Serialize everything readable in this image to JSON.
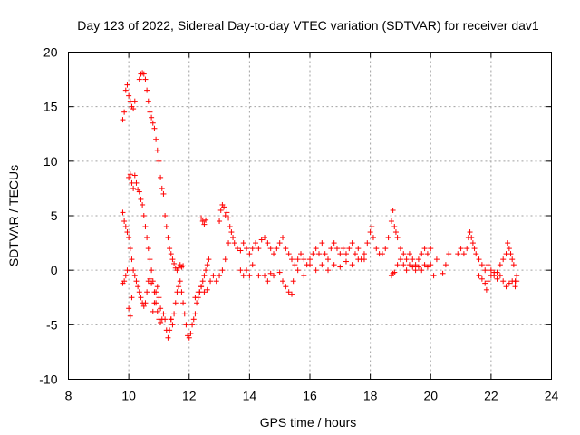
{
  "chart_data": {
    "type": "scatter",
    "title": "Day 123 of 2022, Sidereal Day-to-day VTEC variation (SDTVAR) for receiver dav1",
    "xlabel": "GPS time / hours",
    "ylabel": "SDTVAR / TECUs",
    "xlim": [
      8,
      24
    ],
    "ylim": [
      -10,
      20
    ],
    "x_ticks": [
      "8",
      "10",
      "12",
      "14",
      "16",
      "18",
      "20",
      "22",
      "24"
    ],
    "y_ticks": [
      "-10",
      "-5",
      "0",
      "5",
      "10",
      "15",
      "20"
    ],
    "grid": true,
    "marker": "+",
    "color": "#ff0000",
    "series": [
      {
        "name": "SDTVAR",
        "points": [
          [
            9.8,
            13.8
          ],
          [
            9.85,
            14.5
          ],
          [
            9.9,
            16.5
          ],
          [
            9.95,
            17.0
          ],
          [
            10.0,
            16.0
          ],
          [
            10.05,
            15.5
          ],
          [
            10.1,
            15.0
          ],
          [
            10.15,
            14.8
          ],
          [
            10.2,
            15.5
          ],
          [
            10.0,
            8.5
          ],
          [
            10.05,
            8.8
          ],
          [
            10.1,
            8.0
          ],
          [
            10.15,
            7.5
          ],
          [
            10.2,
            8.7
          ],
          [
            10.25,
            8.0
          ],
          [
            10.3,
            7.4
          ],
          [
            10.35,
            7.2
          ],
          [
            10.4,
            6.5
          ],
          [
            10.45,
            6.0
          ],
          [
            10.5,
            5.0
          ],
          [
            10.55,
            4.0
          ],
          [
            10.6,
            3.0
          ],
          [
            10.65,
            2.0
          ],
          [
            10.7,
            1.0
          ],
          [
            10.75,
            0.0
          ],
          [
            10.8,
            -1.0
          ],
          [
            10.85,
            -2.0
          ],
          [
            10.9,
            -3.0
          ],
          [
            10.95,
            -3.8
          ],
          [
            11.0,
            -4.5
          ],
          [
            11.05,
            -4.8
          ],
          [
            11.1,
            -4.5
          ],
          [
            11.15,
            -4.0
          ],
          [
            11.2,
            -4.5
          ],
          [
            11.25,
            -5.5
          ],
          [
            11.3,
            -6.2
          ],
          [
            11.35,
            -5.5
          ],
          [
            11.4,
            -4.5
          ],
          [
            10.35,
            17.5
          ],
          [
            10.4,
            18.0
          ],
          [
            10.45,
            18.1
          ],
          [
            10.5,
            18.0
          ],
          [
            10.55,
            17.5
          ],
          [
            10.6,
            16.5
          ],
          [
            10.65,
            15.5
          ],
          [
            10.7,
            14.5
          ],
          [
            10.75,
            14.0
          ],
          [
            10.8,
            13.5
          ],
          [
            10.85,
            13.0
          ],
          [
            10.9,
            12.0
          ],
          [
            10.95,
            11.0
          ],
          [
            11.0,
            10.0
          ],
          [
            11.05,
            8.5
          ],
          [
            11.1,
            7.5
          ],
          [
            11.15,
            7.0
          ],
          [
            11.2,
            5.0
          ],
          [
            11.25,
            4.0
          ],
          [
            11.3,
            3.0
          ],
          [
            11.35,
            2.0
          ],
          [
            11.4,
            1.5
          ],
          [
            11.45,
            1.0
          ],
          [
            11.5,
            0.6
          ],
          [
            11.55,
            0.2
          ],
          [
            11.6,
            0.0
          ],
          [
            11.65,
            0.2
          ],
          [
            11.7,
            0.5
          ],
          [
            11.75,
            0.3
          ],
          [
            11.8,
            0.4
          ],
          [
            9.8,
            5.3
          ],
          [
            9.85,
            4.5
          ],
          [
            9.9,
            4.0
          ],
          [
            9.95,
            3.5
          ],
          [
            10.0,
            3.0
          ],
          [
            10.05,
            2.0
          ],
          [
            10.1,
            1.0
          ],
          [
            10.15,
            0.0
          ],
          [
            10.2,
            -0.5
          ],
          [
            10.25,
            -1.0
          ],
          [
            10.3,
            -1.5
          ],
          [
            10.35,
            -2.0
          ],
          [
            10.4,
            -2.5
          ],
          [
            10.45,
            -3.0
          ],
          [
            10.5,
            -3.3
          ],
          [
            10.55,
            -3.0
          ],
          [
            10.6,
            -2.0
          ],
          [
            10.65,
            -1.0
          ],
          [
            10.7,
            -0.8
          ],
          [
            10.75,
            -1.2
          ],
          [
            9.8,
            -1.2
          ],
          [
            9.85,
            -1.0
          ],
          [
            9.9,
            -0.5
          ],
          [
            9.95,
            0.0
          ],
          [
            10.0,
            -3.5
          ],
          [
            10.05,
            -4.2
          ],
          [
            10.1,
            -2.5
          ],
          [
            10.8,
            -3.8
          ],
          [
            10.85,
            -3.0
          ],
          [
            10.9,
            -2.0
          ],
          [
            10.95,
            -1.5
          ],
          [
            11.0,
            -2.5
          ],
          [
            11.05,
            -3.5
          ],
          [
            11.4,
            -4.5
          ],
          [
            11.45,
            -5.0
          ],
          [
            11.5,
            -4.0
          ],
          [
            11.55,
            -3.0
          ],
          [
            11.6,
            -2.0
          ],
          [
            11.65,
            -1.5
          ],
          [
            11.7,
            -1.0
          ],
          [
            11.75,
            -2.0
          ],
          [
            11.8,
            -3.0
          ],
          [
            11.85,
            -4.0
          ],
          [
            11.9,
            -5.0
          ],
          [
            11.95,
            -6.0
          ],
          [
            12.0,
            -6.2
          ],
          [
            12.05,
            -5.8
          ],
          [
            12.1,
            -5.0
          ],
          [
            12.15,
            -4.5
          ],
          [
            12.2,
            -4.0
          ],
          [
            12.25,
            -3.0
          ],
          [
            12.3,
            -2.5
          ],
          [
            12.35,
            -2.0
          ],
          [
            12.4,
            -1.5
          ],
          [
            12.45,
            -1.0
          ],
          [
            12.5,
            -0.5
          ],
          [
            12.55,
            0.0
          ],
          [
            12.6,
            0.5
          ],
          [
            12.65,
            1.0
          ],
          [
            12.2,
            -2.5
          ],
          [
            12.3,
            -2.0
          ],
          [
            12.4,
            -1.5
          ],
          [
            12.5,
            -2.0
          ],
          [
            12.6,
            -1.8
          ],
          [
            12.7,
            -1.0
          ],
          [
            12.8,
            -0.5
          ],
          [
            12.9,
            -1.0
          ],
          [
            13.0,
            -0.5
          ],
          [
            13.1,
            0.0
          ],
          [
            13.2,
            1.0
          ],
          [
            13.3,
            2.5
          ],
          [
            12.4,
            4.8
          ],
          [
            12.45,
            4.5
          ],
          [
            12.5,
            4.2
          ],
          [
            12.55,
            4.6
          ],
          [
            13.0,
            4.5
          ],
          [
            13.05,
            5.5
          ],
          [
            13.1,
            6.0
          ],
          [
            13.15,
            5.8
          ],
          [
            13.2,
            5.0
          ],
          [
            13.25,
            5.3
          ],
          [
            13.3,
            4.8
          ],
          [
            13.35,
            4.0
          ],
          [
            13.4,
            3.5
          ],
          [
            13.45,
            3.0
          ],
          [
            13.5,
            2.5
          ],
          [
            13.6,
            2.0
          ],
          [
            13.7,
            1.8
          ],
          [
            13.8,
            2.5
          ],
          [
            13.9,
            2.0
          ],
          [
            14.0,
            1.5
          ],
          [
            14.1,
            2.0
          ],
          [
            14.2,
            2.5
          ],
          [
            14.3,
            2.0
          ],
          [
            14.4,
            2.8
          ],
          [
            14.5,
            3.0
          ],
          [
            14.6,
            2.5
          ],
          [
            14.7,
            2.0
          ],
          [
            14.8,
            1.5
          ],
          [
            14.9,
            2.0
          ],
          [
            15.0,
            2.5
          ],
          [
            15.1,
            3.0
          ],
          [
            15.2,
            2.0
          ],
          [
            15.3,
            1.5
          ],
          [
            15.4,
            1.0
          ],
          [
            15.5,
            0.5
          ],
          [
            15.6,
            1.0
          ],
          [
            15.7,
            1.5
          ],
          [
            15.8,
            1.0
          ],
          [
            15.9,
            0.5
          ],
          [
            16.0,
            1.0
          ],
          [
            16.1,
            1.5
          ],
          [
            16.2,
            2.0
          ],
          [
            16.3,
            1.5
          ],
          [
            16.4,
            2.5
          ],
          [
            16.5,
            1.5
          ],
          [
            16.6,
            1.0
          ],
          [
            16.7,
            2.0
          ],
          [
            16.8,
            2.5
          ],
          [
            16.9,
            2.0
          ],
          [
            17.0,
            1.5
          ],
          [
            17.1,
            2.0
          ],
          [
            17.2,
            1.5
          ],
          [
            17.3,
            2.0
          ],
          [
            17.4,
            2.5
          ],
          [
            17.5,
            1.5
          ],
          [
            17.6,
            2.0
          ],
          [
            17.7,
            1.0
          ],
          [
            17.8,
            1.5
          ],
          [
            17.9,
            2.5
          ],
          [
            18.0,
            3.5
          ],
          [
            18.05,
            4.0
          ],
          [
            18.1,
            3.0
          ],
          [
            18.2,
            2.0
          ],
          [
            18.3,
            1.5
          ],
          [
            18.4,
            1.5
          ],
          [
            18.5,
            2.0
          ],
          [
            18.6,
            3.0
          ],
          [
            18.7,
            4.5
          ],
          [
            18.75,
            5.5
          ],
          [
            18.8,
            4.0
          ],
          [
            18.85,
            3.5
          ],
          [
            18.9,
            3.0
          ],
          [
            19.0,
            2.0
          ],
          [
            19.1,
            1.5
          ],
          [
            19.2,
            1.0
          ],
          [
            19.3,
            1.5
          ],
          [
            19.4,
            1.0
          ],
          [
            19.5,
            0.5
          ],
          [
            19.6,
            1.0
          ],
          [
            19.7,
            1.5
          ],
          [
            19.8,
            2.0
          ],
          [
            19.9,
            1.5
          ],
          [
            20.0,
            2.0
          ],
          [
            13.7,
            0.0
          ],
          [
            13.8,
            -0.5
          ],
          [
            13.9,
            0.0
          ],
          [
            14.0,
            -0.5
          ],
          [
            14.1,
            0.5
          ],
          [
            14.3,
            -0.5
          ],
          [
            14.5,
            -0.5
          ],
          [
            14.6,
            -1.0
          ],
          [
            14.7,
            -0.3
          ],
          [
            14.8,
            -0.5
          ],
          [
            15.0,
            -0.2
          ],
          [
            15.1,
            -1.0
          ],
          [
            15.2,
            -1.5
          ],
          [
            15.3,
            -2.0
          ],
          [
            15.4,
            -2.2
          ],
          [
            15.45,
            -1.0
          ],
          [
            15.6,
            0.0
          ],
          [
            15.8,
            -0.5
          ],
          [
            16.0,
            0.5
          ],
          [
            16.2,
            0.0
          ],
          [
            16.4,
            0.5
          ],
          [
            16.6,
            0.0
          ],
          [
            16.8,
            0.5
          ],
          [
            17.0,
            0.3
          ],
          [
            17.2,
            0.8
          ],
          [
            17.4,
            0.5
          ],
          [
            17.6,
            1.0
          ],
          [
            17.8,
            1.0
          ],
          [
            18.7,
            -0.5
          ],
          [
            18.75,
            -0.3
          ],
          [
            18.8,
            -0.2
          ],
          [
            18.9,
            0.5
          ],
          [
            19.0,
            1.0
          ],
          [
            19.1,
            0.5
          ],
          [
            19.2,
            0.0
          ],
          [
            19.3,
            0.5
          ],
          [
            19.4,
            0.3
          ],
          [
            19.5,
            0.0
          ],
          [
            19.6,
            0.3
          ],
          [
            19.7,
            0.0
          ],
          [
            19.8,
            0.5
          ],
          [
            19.9,
            0.3
          ],
          [
            20.0,
            0.5
          ],
          [
            20.1,
            -0.5
          ],
          [
            20.2,
            1.0
          ],
          [
            20.4,
            -0.3
          ],
          [
            20.5,
            0.5
          ],
          [
            20.6,
            1.5
          ],
          [
            20.9,
            1.5
          ],
          [
            21.0,
            2.0
          ],
          [
            21.1,
            1.5
          ],
          [
            21.2,
            2.0
          ],
          [
            21.25,
            3.0
          ],
          [
            21.3,
            3.5
          ],
          [
            21.35,
            3.0
          ],
          [
            21.4,
            2.5
          ],
          [
            21.45,
            2.0
          ],
          [
            21.5,
            1.5
          ],
          [
            21.6,
            1.0
          ],
          [
            21.7,
            0.5
          ],
          [
            21.8,
            0.0
          ],
          [
            21.9,
            0.5
          ],
          [
            22.0,
            0.0
          ],
          [
            22.1,
            -0.5
          ],
          [
            22.2,
            -0.2
          ],
          [
            22.3,
            0.5
          ],
          [
            22.4,
            1.0
          ],
          [
            22.5,
            1.5
          ],
          [
            22.55,
            2.5
          ],
          [
            22.6,
            2.0
          ],
          [
            22.65,
            1.5
          ],
          [
            22.7,
            1.0
          ],
          [
            22.75,
            0.5
          ],
          [
            22.8,
            -1.0
          ],
          [
            22.85,
            -0.5
          ],
          [
            21.6,
            -0.5
          ],
          [
            21.7,
            -0.8
          ],
          [
            21.8,
            -1.2
          ],
          [
            21.85,
            -1.8
          ],
          [
            21.9,
            -1.0
          ],
          [
            22.0,
            -0.5
          ],
          [
            22.1,
            -0.2
          ],
          [
            22.2,
            -0.8
          ],
          [
            22.3,
            -0.5
          ],
          [
            22.4,
            -1.0
          ],
          [
            22.5,
            -1.5
          ],
          [
            22.6,
            -1.2
          ],
          [
            22.7,
            -1.0
          ],
          [
            22.8,
            -1.5
          ],
          [
            22.85,
            -1.0
          ]
        ]
      }
    ]
  }
}
